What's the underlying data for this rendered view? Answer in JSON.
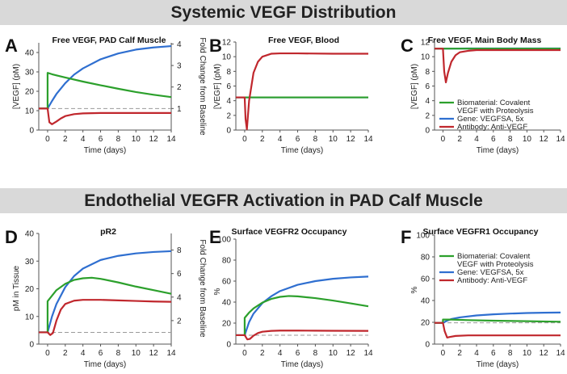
{
  "banners": {
    "systemic": "Systemic VEGF Distribution",
    "endothelial": "Endothelial VEGFR Activation in PAD Calf Muscle"
  },
  "colors": {
    "biomaterial": "#2ca02c",
    "gene": "#2f6fd0",
    "antibody": "#c0272d",
    "baseline": "#9a9a9a"
  },
  "chart_data": [
    {
      "id": "A",
      "letter": "A",
      "type": "line",
      "title": "Free VEGF, PAD Calf Muscle",
      "xlabel": "Time (days)",
      "ylabel": "[VEGF] (pM)",
      "xlim": [
        -1,
        14
      ],
      "xticks": [
        0,
        2,
        4,
        6,
        8,
        10,
        12,
        14
      ],
      "ylim": [
        0,
        45
      ],
      "yticks": [
        0,
        10,
        20,
        30,
        40
      ],
      "y2label": "Fold Change from Baseline",
      "y2ticks": [
        {
          "label": "1",
          "at": 11.1
        },
        {
          "label": "2",
          "at": 22.2
        },
        {
          "label": "3",
          "at": 33.3
        },
        {
          "label": "4",
          "at": 44.4
        }
      ],
      "baseline": 11.1,
      "series": [
        {
          "name": "Biomaterial",
          "x": [
            -1,
            0,
            0,
            0.5,
            1,
            2,
            4,
            6,
            8,
            10,
            12,
            14
          ],
          "y": [
            11.1,
            11.1,
            29.5,
            28.8,
            28.2,
            27.1,
            25.0,
            23.1,
            21.3,
            19.6,
            18.2,
            17.0
          ]
        },
        {
          "name": "Gene",
          "x": [
            -1,
            0,
            0.5,
            1,
            2,
            3,
            4,
            6,
            8,
            10,
            12,
            14
          ],
          "y": [
            11.1,
            11.1,
            15.0,
            18.6,
            24.2,
            28.6,
            31.8,
            36.5,
            39.5,
            41.5,
            42.6,
            43.3
          ]
        },
        {
          "name": "Antibody",
          "x": [
            -1,
            0,
            0.2,
            0.5,
            1,
            1.5,
            2,
            3,
            4,
            6,
            8,
            10,
            14
          ],
          "y": [
            11.1,
            11.1,
            4.0,
            3.0,
            4.4,
            6.0,
            7.2,
            8.2,
            8.6,
            8.8,
            8.8,
            8.8,
            8.8
          ]
        }
      ]
    },
    {
      "id": "B",
      "letter": "B",
      "type": "line",
      "title": "Free VEGF, Blood",
      "xlabel": "Time (days)",
      "ylabel": "[VEGF] (pM)",
      "xlim": [
        -1,
        14
      ],
      "xticks": [
        0,
        2,
        4,
        6,
        8,
        10,
        12,
        14
      ],
      "ylim": [
        0,
        12
      ],
      "yticks": [
        0,
        2,
        4,
        6,
        8,
        10,
        12
      ],
      "baseline": 4.45,
      "series": [
        {
          "name": "Biomaterial",
          "x": [
            -1,
            14
          ],
          "y": [
            4.45,
            4.45
          ]
        },
        {
          "name": "Gene",
          "x": [
            -1,
            14
          ],
          "y": [
            4.45,
            4.45
          ]
        },
        {
          "name": "Antibody",
          "x": [
            -1,
            0,
            0.1,
            0.25,
            0.5,
            1,
            1.5,
            2,
            3,
            4,
            6,
            10,
            14
          ],
          "y": [
            4.45,
            4.45,
            1.5,
            0.1,
            4.0,
            7.8,
            9.3,
            10.0,
            10.4,
            10.45,
            10.45,
            10.4,
            10.4
          ]
        }
      ]
    },
    {
      "id": "C",
      "letter": "C",
      "type": "line",
      "title": "Free VEGF, Main Body Mass",
      "xlabel": "Time (days)",
      "ylabel": "[VEGF] (pM)",
      "xlim": [
        -1,
        14
      ],
      "xticks": [
        0,
        2,
        4,
        6,
        8,
        10,
        12,
        14
      ],
      "ylim": [
        0,
        12
      ],
      "yticks": [
        0,
        2,
        4,
        6,
        8,
        10,
        12
      ],
      "baseline": 11.1,
      "legend": [
        "Biomaterial: Covalent",
        "VEGF with Proteolysis",
        "Gene:  VEGFSA, 5x",
        "Antibody: Anti-VEGF"
      ],
      "series": [
        {
          "name": "Biomaterial",
          "x": [
            -1,
            14
          ],
          "y": [
            11.1,
            11.1
          ]
        },
        {
          "name": "Gene",
          "x": [
            -1,
            0,
            1,
            3,
            14
          ],
          "y": [
            11.1,
            11.1,
            11.1,
            11.12,
            11.12
          ]
        },
        {
          "name": "Antibody",
          "x": [
            -1,
            0,
            0.15,
            0.35,
            0.6,
            1,
            1.5,
            2,
            3,
            4,
            6,
            10,
            14
          ],
          "y": [
            11.1,
            11.1,
            8.0,
            6.5,
            7.8,
            9.3,
            10.2,
            10.6,
            10.8,
            10.9,
            10.9,
            10.9,
            10.9
          ]
        }
      ]
    },
    {
      "id": "D",
      "letter": "D",
      "type": "line",
      "title": "pR2",
      "xlabel": "Time (days)",
      "ylabel": "pM in Tissue",
      "xlim": [
        -1,
        14
      ],
      "xticks": [
        0,
        2,
        4,
        6,
        8,
        10,
        12,
        14
      ],
      "ylim": [
        0,
        40
      ],
      "yticks": [
        0,
        10,
        20,
        30,
        40
      ],
      "y2label": "Fold Change from Baseline",
      "y2ticks": [
        {
          "label": "2",
          "at": 8.5
        },
        {
          "label": "4",
          "at": 17.0
        },
        {
          "label": "6",
          "at": 25.5
        },
        {
          "label": "8",
          "at": 34.0
        }
      ],
      "baseline": 4.25,
      "series": [
        {
          "name": "Biomaterial",
          "x": [
            -1,
            0,
            0,
            0.5,
            1,
            2,
            3,
            4,
            5,
            6,
            8,
            10,
            12,
            14
          ],
          "y": [
            4.25,
            4.25,
            15.5,
            17.5,
            19.5,
            21.8,
            23.2,
            23.8,
            24.0,
            23.6,
            22.3,
            20.8,
            19.5,
            18.2
          ]
        },
        {
          "name": "Gene",
          "x": [
            -1,
            0,
            0.5,
            1,
            2,
            3,
            4,
            6,
            8,
            10,
            12,
            14
          ],
          "y": [
            4.25,
            4.25,
            10.0,
            14.5,
            20.6,
            24.6,
            27.3,
            30.4,
            31.9,
            32.8,
            33.3,
            33.6
          ]
        },
        {
          "name": "Antibody",
          "x": [
            -1,
            0,
            0.3,
            0.6,
            1,
            1.5,
            2,
            3,
            4,
            6,
            8,
            10,
            12,
            14
          ],
          "y": [
            4.25,
            4.25,
            3.3,
            4.0,
            8.5,
            12.5,
            14.5,
            15.7,
            16.0,
            16.0,
            15.8,
            15.6,
            15.4,
            15.3
          ]
        }
      ]
    },
    {
      "id": "E",
      "letter": "E",
      "type": "line",
      "title": "Surface VEGFR2 Occupancy",
      "xlabel": "Time (days)",
      "ylabel": "%",
      "xlim": [
        -1,
        14
      ],
      "xticks": [
        0,
        2,
        4,
        6,
        8,
        10,
        12,
        14
      ],
      "ylim": [
        0,
        100
      ],
      "yticks": [
        0,
        20,
        40,
        60,
        80,
        100
      ],
      "baseline": 8.5,
      "series": [
        {
          "name": "Biomaterial",
          "x": [
            -1,
            0,
            0,
            0.5,
            1,
            2,
            3,
            4,
            5,
            6,
            8,
            10,
            12,
            14
          ],
          "y": [
            8.5,
            8.5,
            25.0,
            30.0,
            34.0,
            39.5,
            43.0,
            45.0,
            45.8,
            45.5,
            43.8,
            41.5,
            38.8,
            36.0
          ]
        },
        {
          "name": "Gene",
          "x": [
            -1,
            0,
            0.5,
            1,
            2,
            3,
            4,
            6,
            8,
            10,
            12,
            14
          ],
          "y": [
            8.5,
            8.5,
            21.0,
            29.0,
            39.0,
            45.5,
            50.5,
            56.5,
            60.0,
            62.2,
            63.5,
            64.3
          ]
        },
        {
          "name": "Antibody",
          "x": [
            -1,
            0,
            0.3,
            0.6,
            1,
            1.5,
            2,
            3,
            4,
            6,
            8,
            10,
            14
          ],
          "y": [
            8.5,
            8.5,
            4.5,
            5.0,
            8.0,
            10.5,
            11.8,
            12.6,
            12.9,
            12.9,
            12.8,
            12.7,
            12.6
          ]
        }
      ]
    },
    {
      "id": "F",
      "letter": "F",
      "type": "line",
      "title": "Surface VEGFR1 Occupancy",
      "xlabel": "Time (days)",
      "ylabel": "%",
      "xlim": [
        -1,
        14
      ],
      "xticks": [
        0,
        2,
        4,
        6,
        8,
        10,
        12,
        14
      ],
      "ylim": [
        0,
        100
      ],
      "yticks": [
        0,
        20,
        40,
        60,
        80,
        100
      ],
      "baseline": 19.5,
      "legend": [
        "Biomaterial: Covalent",
        "VEGF with Proteolysis",
        "Gene:  VEGFSA, 5x",
        "Antibody: Anti-VEGF"
      ],
      "series": [
        {
          "name": "Biomaterial",
          "x": [
            -1,
            0,
            0,
            1,
            3,
            6,
            10,
            14
          ],
          "y": [
            19.5,
            19.5,
            22.5,
            22.5,
            22.0,
            21.5,
            21.0,
            20.5
          ]
        },
        {
          "name": "Gene",
          "x": [
            -1,
            0,
            0.5,
            1,
            2,
            4,
            6,
            8,
            10,
            12,
            14
          ],
          "y": [
            19.5,
            19.5,
            21.5,
            23.0,
            24.5,
            26.3,
            27.3,
            28.0,
            28.5,
            28.8,
            29.0
          ]
        },
        {
          "name": "Antibody",
          "x": [
            -1,
            0,
            0.2,
            0.5,
            0.8,
            1.5,
            3,
            6,
            10,
            14
          ],
          "y": [
            19.5,
            19.5,
            12.0,
            6.0,
            6.5,
            7.5,
            8.0,
            8.0,
            8.0,
            8.0
          ]
        }
      ]
    }
  ]
}
